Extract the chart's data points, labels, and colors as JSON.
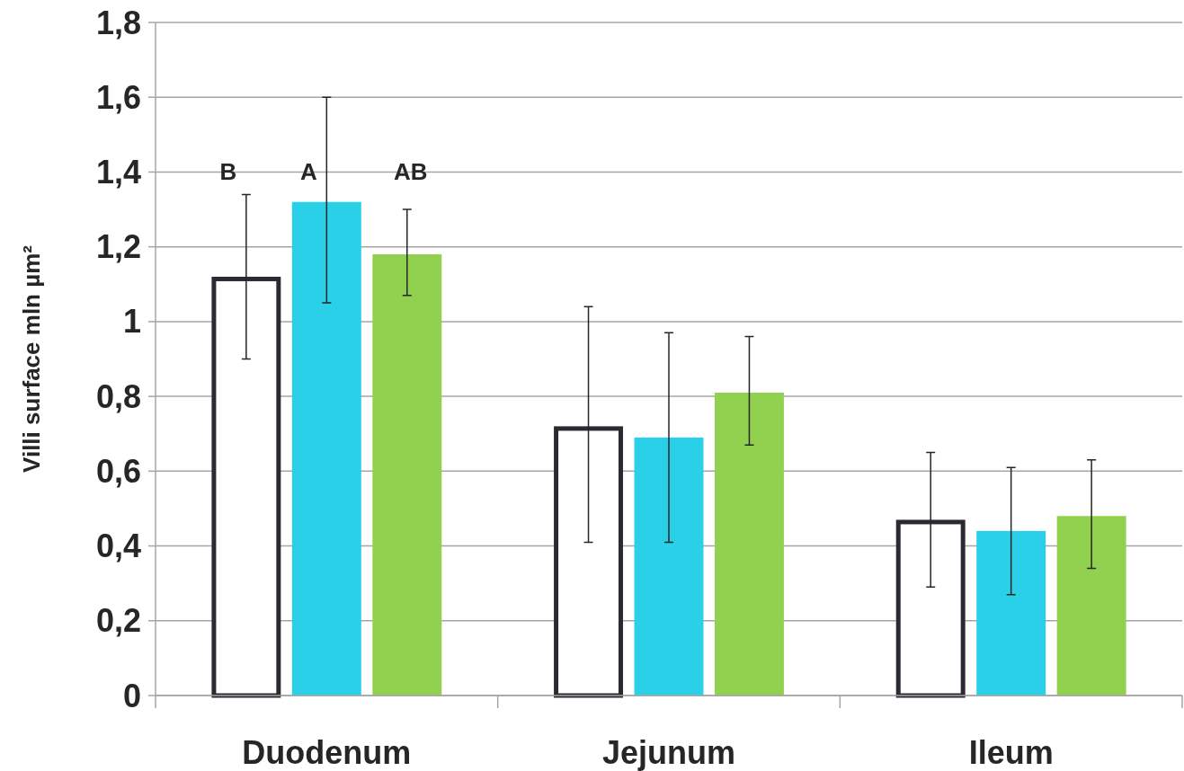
{
  "chart_data": {
    "type": "bar",
    "ylabel": "Villi surface mln µm²",
    "categories": [
      "Duodenum",
      "Jejunum",
      "Ileum"
    ],
    "series": [
      {
        "color": "#ffffff",
        "values": [
          1.12,
          0.72,
          0.47
        ],
        "errors": [
          [
            0.9,
            1.34
          ],
          [
            0.41,
            1.04
          ],
          [
            0.29,
            0.65
          ]
        ]
      },
      {
        "color": "#29d0e8",
        "values": [
          1.32,
          0.69,
          0.44
        ],
        "errors": [
          [
            1.05,
            1.6
          ],
          [
            0.41,
            0.97
          ],
          [
            0.27,
            0.61
          ]
        ]
      },
      {
        "color": "#92d050",
        "values": [
          1.18,
          0.81,
          0.48
        ],
        "errors": [
          [
            1.07,
            1.3
          ],
          [
            0.67,
            0.96
          ],
          [
            0.34,
            0.63
          ]
        ]
      }
    ],
    "ylim": [
      0,
      1.8
    ],
    "yticks": [
      0,
      {
        "value": 0.2,
        "label": "0,2"
      },
      {
        "value": 0.4,
        "label": "0,4"
      },
      {
        "value": 0.6,
        "label": "0,6"
      },
      {
        "value": 0.8,
        "label": "0,8"
      },
      1,
      {
        "value": 1.2,
        "label": "1,2"
      },
      {
        "value": 1.4,
        "label": "1,4"
      },
      {
        "value": 1.6,
        "label": "1,6"
      },
      {
        "value": 1.8,
        "label": "1,8"
      }
    ],
    "grid": "y",
    "annotations": [
      "B",
      "A",
      "AB"
    ]
  }
}
